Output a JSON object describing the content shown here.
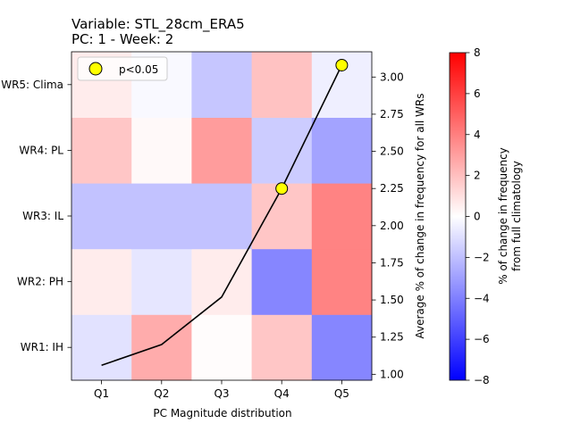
{
  "chart_data": [
    {
      "type": "heatmap",
      "title_line1": "Variable: STL_28cm_ERA5",
      "title_line2": "PC: 1 - Week: 2",
      "xlabel": "PC Magnitude distribution",
      "columns": [
        "Q1",
        "Q2",
        "Q3",
        "Q4",
        "Q5"
      ],
      "rows_bottom_to_top": [
        "WR1: IH",
        "WR2: PH",
        "WR3: IL",
        "WR4: PL",
        "WR5: Clima"
      ],
      "values": [
        [
          -0.9,
          2.6,
          0.1,
          1.8,
          -3.8
        ],
        [
          0.6,
          -0.8,
          0.6,
          -3.8,
          3.9
        ],
        [
          -1.9,
          -1.9,
          -1.9,
          1.8,
          3.9
        ],
        [
          1.8,
          0.2,
          3.1,
          -1.6,
          -2.9
        ],
        [
          0.6,
          -0.2,
          -1.8,
          1.9,
          -0.5
        ]
      ],
      "colorbar": {
        "label_line1": "% of change in frequency",
        "label_line2": "from full climatology",
        "min": -8,
        "max": 8,
        "ticks": [
          -8,
          -6,
          -4,
          -2,
          0,
          2,
          4,
          6,
          8
        ],
        "tick_labels": [
          "−8",
          "−6",
          "−4",
          "−2",
          "0",
          "2",
          "4",
          "6",
          "8"
        ]
      }
    },
    {
      "type": "line",
      "series_name": "Average % of change in frequency for all WRs",
      "ylabel": "Average % of change in frequency for all WRs",
      "x": [
        "Q1",
        "Q2",
        "Q3",
        "Q4",
        "Q5"
      ],
      "values": [
        1.06,
        1.2,
        1.52,
        2.25,
        3.08
      ],
      "ylim": [
        0.96,
        3.17
      ],
      "y_ticks": [
        1.0,
        1.25,
        1.5,
        1.75,
        2.0,
        2.25,
        2.5,
        2.75,
        3.0
      ],
      "y_tick_labels": [
        "1.00",
        "1.25",
        "1.50",
        "1.75",
        "2.00",
        "2.25",
        "2.50",
        "2.75",
        "3.00"
      ],
      "significant": [
        false,
        false,
        false,
        true,
        true
      ],
      "marker_color": "#ffff00",
      "legend": {
        "label": "p<0.05",
        "position": "upper-left"
      }
    }
  ]
}
